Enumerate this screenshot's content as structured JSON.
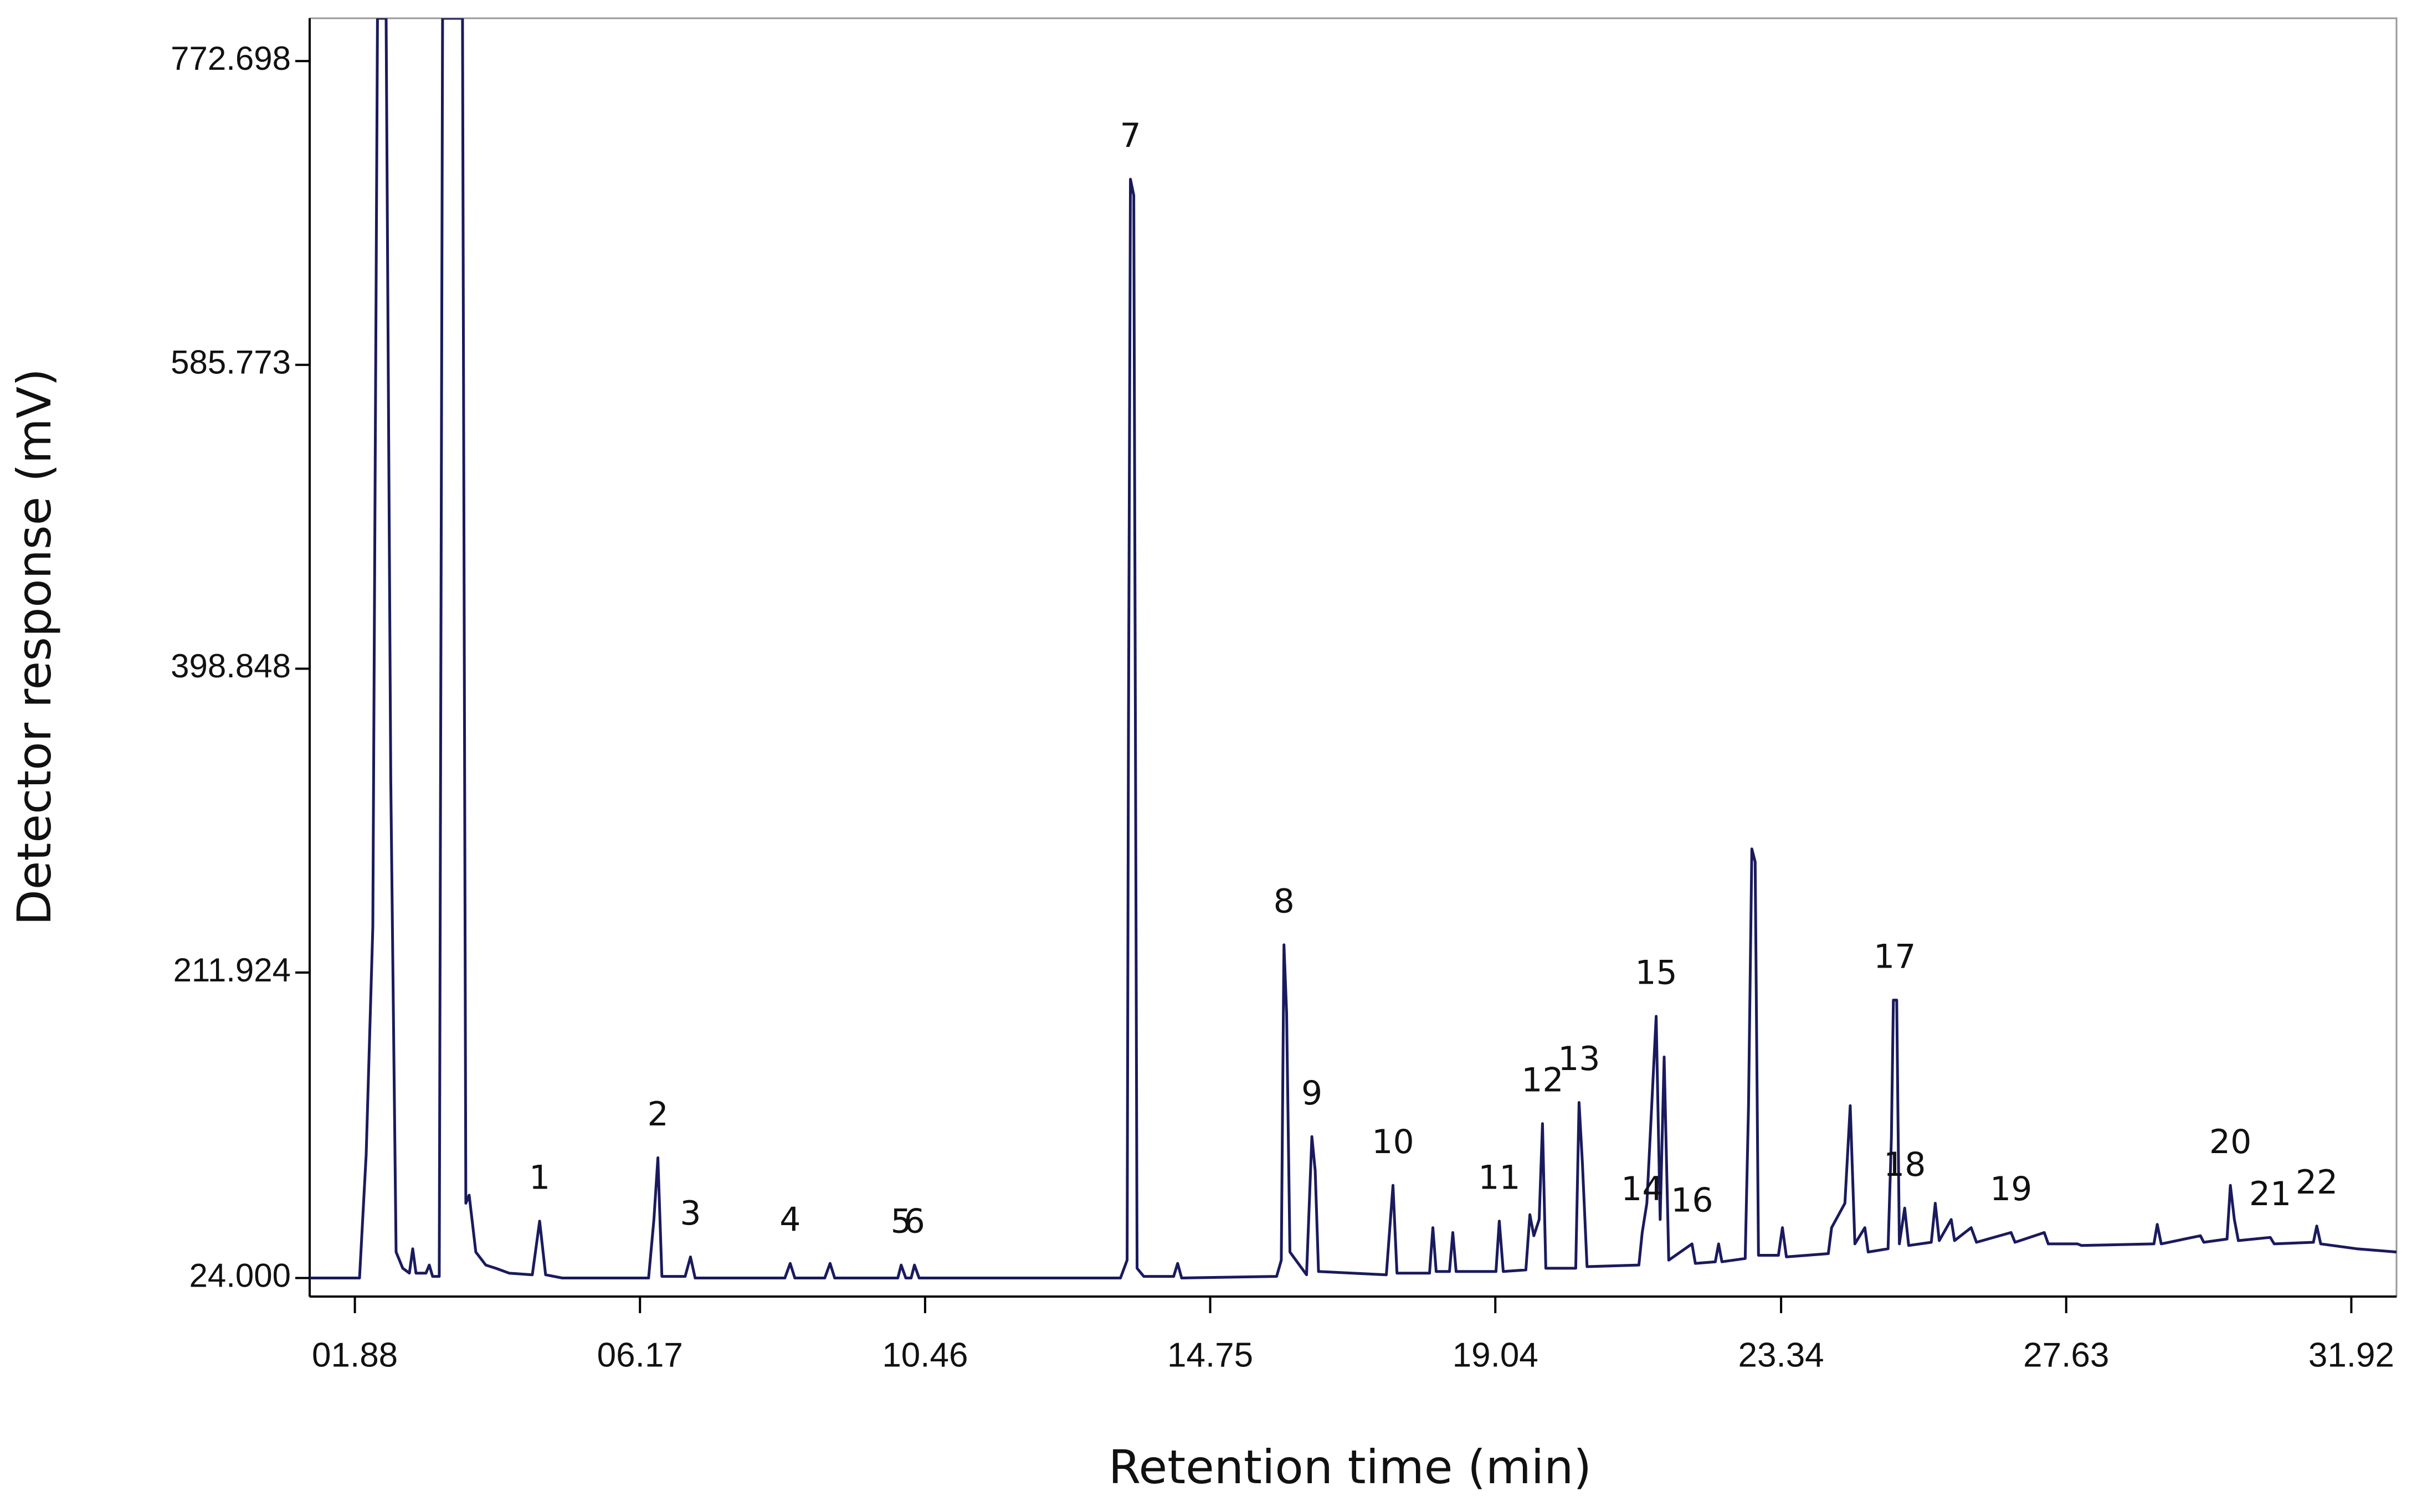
{
  "chart_data": {
    "type": "line",
    "x_label": "Retention time (min)",
    "y_label": "Detector response (mV)",
    "xlim": [
      1.2,
      32.6
    ],
    "ylim": [
      12.6,
      799
    ],
    "xticks": [
      {
        "value": 1.88,
        "label": "01.88"
      },
      {
        "value": 6.17,
        "label": "06.17"
      },
      {
        "value": 10.46,
        "label": "10.46"
      },
      {
        "value": 14.75,
        "label": "14.75"
      },
      {
        "value": 19.04,
        "label": "19.04"
      },
      {
        "value": 23.34,
        "label": "23.34"
      },
      {
        "value": 27.63,
        "label": "27.63"
      },
      {
        "value": 31.92,
        "label": "31.92"
      }
    ],
    "yticks": [
      {
        "value": 24,
        "label": "24.000"
      },
      211.924,
      398.848,
      585.773,
      772.698
    ],
    "series": [
      {
        "color": "#1a1a5e",
        "x": [
          1.2,
          1.95,
          2.05,
          2.15,
          2.22,
          2.35,
          2.42,
          2.5,
          2.6,
          2.7,
          2.75,
          2.8,
          2.95,
          3.0,
          3.05,
          3.15,
          3.2,
          3.5,
          3.55,
          3.6,
          3.7,
          3.85,
          4.0,
          4.2,
          4.55,
          4.66,
          4.75,
          5.0,
          6.3,
          6.38,
          6.44,
          6.5,
          6.85,
          6.93,
          7.0,
          8.35,
          8.43,
          8.5,
          8.95,
          9.03,
          9.1,
          10.05,
          10.1,
          10.17,
          10.25,
          10.3,
          10.37,
          13.4,
          13.5,
          13.52,
          13.55,
          13.6,
          13.65,
          13.75,
          14.2,
          14.26,
          14.32,
          15.75,
          15.82,
          15.86,
          15.9,
          15.95,
          16.2,
          16.28,
          16.33,
          16.38,
          17.4,
          17.5,
          17.56,
          18.05,
          18.1,
          18.15,
          18.35,
          18.4,
          18.45,
          19.05,
          19.1,
          19.16,
          19.5,
          19.56,
          19.62,
          19.7,
          19.75,
          19.8,
          20.25,
          20.3,
          20.35,
          20.42,
          21.2,
          21.25,
          21.32,
          21.46,
          21.52,
          21.58,
          21.65,
          22.0,
          22.05,
          22.35,
          22.4,
          22.45,
          22.8,
          22.85,
          22.9,
          22.95,
          23.0,
          23.3,
          23.36,
          23.42,
          24.05,
          24.1,
          24.3,
          24.38,
          24.45,
          24.6,
          24.65,
          24.95,
          25.0,
          25.03,
          25.08,
          25.12,
          25.2,
          25.26,
          25.6,
          25.66,
          25.72,
          25.9,
          25.95,
          26.2,
          26.28,
          26.8,
          26.86,
          27.3,
          27.36,
          27.8,
          27.86,
          28.95,
          29.0,
          29.06,
          29.65,
          29.7,
          30.05,
          30.1,
          30.16,
          30.22,
          30.7,
          30.76,
          31.35,
          31.4,
          31.46,
          32.0,
          32.6
        ],
        "values": [
          24,
          24,
          100,
          240,
          799,
          799,
          330,
          40,
          30,
          27,
          42,
          27,
          27,
          32,
          25,
          25,
          799,
          799,
          70,
          75,
          40,
          32,
          30,
          27,
          26,
          59,
          26,
          24,
          24,
          60,
          98,
          25,
          25,
          37,
          24,
          24,
          33,
          24,
          24,
          33,
          24,
          24,
          32,
          24,
          24,
          32,
          24,
          24,
          35,
          360,
          700,
          690,
          30,
          25,
          25,
          33,
          24,
          25,
          35,
          229,
          187,
          40,
          26,
          111,
          90,
          28,
          26,
          81,
          27,
          27,
          55,
          28,
          28,
          52,
          28,
          28,
          59,
          28,
          29,
          63,
          50,
          60,
          119,
          30,
          30,
          132,
          95,
          31,
          32,
          52,
          70,
          185,
          60,
          160,
          35,
          45,
          33,
          34,
          45,
          34,
          36,
          130,
          288,
          280,
          38,
          38,
          55,
          37,
          39,
          55,
          70,
          130,
          45,
          55,
          40,
          42,
          110,
          195,
          195,
          45,
          67,
          44,
          46,
          70,
          47,
          60,
          47,
          55,
          46,
          52,
          46,
          52,
          45,
          45,
          44,
          45,
          57,
          45,
          50,
          46,
          48,
          81,
          60,
          47,
          49,
          45,
          46,
          56,
          45,
          42,
          40
        ]
      }
    ],
    "annotations": [
      {
        "label": "1",
        "x": 4.66,
        "y": 59
      },
      {
        "label": "2",
        "x": 6.44,
        "y": 98
      },
      {
        "label": "3",
        "x": 6.93,
        "y": 37
      },
      {
        "label": "4",
        "x": 8.43,
        "y": 33
      },
      {
        "label": "5",
        "x": 10.1,
        "y": 32
      },
      {
        "label": "6",
        "x": 10.3,
        "y": 32
      },
      {
        "label": "7",
        "x": 13.55,
        "y": 700
      },
      {
        "label": "8",
        "x": 15.86,
        "y": 229
      },
      {
        "label": "9",
        "x": 16.28,
        "y": 111
      },
      {
        "label": "10",
        "x": 17.5,
        "y": 81
      },
      {
        "label": "11",
        "x": 19.1,
        "y": 59
      },
      {
        "label": "12",
        "x": 19.75,
        "y": 119
      },
      {
        "label": "13",
        "x": 20.3,
        "y": 132
      },
      {
        "label": "14",
        "x": 21.25,
        "y": 52
      },
      {
        "label": "15",
        "x": 21.46,
        "y": 185
      },
      {
        "label": "16",
        "x": 22.0,
        "y": 45
      },
      {
        "label": "17",
        "x": 25.05,
        "y": 195
      },
      {
        "label": "18",
        "x": 25.2,
        "y": 67
      },
      {
        "label": "19",
        "x": 26.8,
        "y": 52
      },
      {
        "label": "20",
        "x": 30.1,
        "y": 81
      },
      {
        "label": "21",
        "x": 30.7,
        "y": 49
      },
      {
        "label": "22",
        "x": 31.4,
        "y": 56
      }
    ]
  }
}
